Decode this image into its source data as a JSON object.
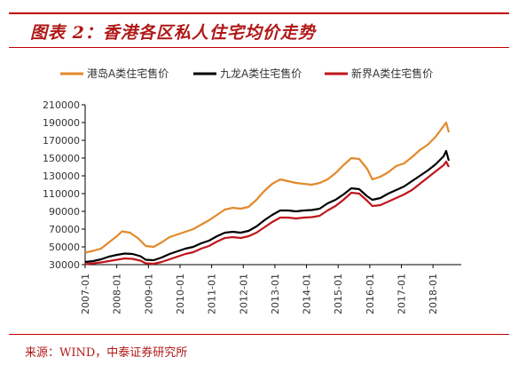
{
  "header": {
    "title": "图表 2：香港各区私人住宅均价走势"
  },
  "footer": {
    "source": "来源：WIND，中泰证券研究所"
  },
  "colors": {
    "accent": "#c00000"
  },
  "chart_data": {
    "type": "line",
    "title": "图表 2：香港各区私人住宅均价走势",
    "xlabel": "",
    "ylabel": "",
    "ylim": [
      30000,
      210000
    ],
    "yticks": [
      30000,
      50000,
      70000,
      90000,
      110000,
      130000,
      150000,
      170000,
      190000,
      210000
    ],
    "x_tick_labels": [
      "2007-01",
      "2008-01",
      "2009-01",
      "2010-01",
      "2011-01",
      "2012-01",
      "2013-01",
      "2014-01",
      "2015-01",
      "2016-01",
      "2017-01",
      "2018-01"
    ],
    "x_start": "2007-01",
    "x_end": "2018-07",
    "grid": false,
    "legend_position": "top",
    "series": [
      {
        "name": "港岛A类住宅售价",
        "color": "#e3892b",
        "points": [
          [
            "2007-01",
            43500
          ],
          [
            "2007-04",
            45500
          ],
          [
            "2007-07",
            48000
          ],
          [
            "2007-10",
            55000
          ],
          [
            "2008-01",
            62000
          ],
          [
            "2008-03",
            67500
          ],
          [
            "2008-06",
            66000
          ],
          [
            "2008-09",
            60000
          ],
          [
            "2008-12",
            51000
          ],
          [
            "2009-03",
            50000
          ],
          [
            "2009-06",
            55000
          ],
          [
            "2009-09",
            61000
          ],
          [
            "2009-12",
            64000
          ],
          [
            "2010-03",
            67000
          ],
          [
            "2010-06",
            70000
          ],
          [
            "2010-09",
            75000
          ],
          [
            "2010-12",
            80000
          ],
          [
            "2011-03",
            86000
          ],
          [
            "2011-06",
            92000
          ],
          [
            "2011-09",
            94000
          ],
          [
            "2011-12",
            93000
          ],
          [
            "2012-03",
            95000
          ],
          [
            "2012-06",
            103000
          ],
          [
            "2012-09",
            113000
          ],
          [
            "2012-12",
            121000
          ],
          [
            "2013-03",
            126000
          ],
          [
            "2013-06",
            124000
          ],
          [
            "2013-09",
            122000
          ],
          [
            "2013-12",
            121000
          ],
          [
            "2014-03",
            120000
          ],
          [
            "2014-06",
            122000
          ],
          [
            "2014-09",
            126000
          ],
          [
            "2014-12",
            133000
          ],
          [
            "2015-03",
            142000
          ],
          [
            "2015-06",
            150000
          ],
          [
            "2015-09",
            149000
          ],
          [
            "2015-12",
            138000
          ],
          [
            "2016-02",
            126000
          ],
          [
            "2016-05",
            129000
          ],
          [
            "2016-08",
            134000
          ],
          [
            "2016-11",
            141000
          ],
          [
            "2017-02",
            144000
          ],
          [
            "2017-05",
            151000
          ],
          [
            "2017-08",
            159000
          ],
          [
            "2017-11",
            165000
          ],
          [
            "2018-02",
            174000
          ],
          [
            "2018-05",
            186000
          ],
          [
            "2018-06",
            190000
          ],
          [
            "2018-07",
            179000
          ]
        ]
      },
      {
        "name": "九龙A类住宅售价",
        "color": "#000000",
        "points": [
          [
            "2007-01",
            33000
          ],
          [
            "2007-04",
            34000
          ],
          [
            "2007-07",
            36000
          ],
          [
            "2007-10",
            39000
          ],
          [
            "2008-01",
            41000
          ],
          [
            "2008-04",
            42500
          ],
          [
            "2008-07",
            42000
          ],
          [
            "2008-10",
            39500
          ],
          [
            "2008-12",
            35500
          ],
          [
            "2009-03",
            35000
          ],
          [
            "2009-06",
            38000
          ],
          [
            "2009-09",
            42000
          ],
          [
            "2009-12",
            45000
          ],
          [
            "2010-03",
            48000
          ],
          [
            "2010-06",
            50000
          ],
          [
            "2010-09",
            54000
          ],
          [
            "2010-12",
            57000
          ],
          [
            "2011-03",
            62000
          ],
          [
            "2011-06",
            66000
          ],
          [
            "2011-09",
            67000
          ],
          [
            "2011-12",
            66000
          ],
          [
            "2012-03",
            68000
          ],
          [
            "2012-06",
            73000
          ],
          [
            "2012-09",
            80000
          ],
          [
            "2012-12",
            86000
          ],
          [
            "2013-03",
            91000
          ],
          [
            "2013-06",
            91000
          ],
          [
            "2013-09",
            90000
          ],
          [
            "2013-12",
            91000
          ],
          [
            "2014-03",
            91500
          ],
          [
            "2014-06",
            93000
          ],
          [
            "2014-09",
            99000
          ],
          [
            "2014-12",
            103000
          ],
          [
            "2015-03",
            109000
          ],
          [
            "2015-06",
            116000
          ],
          [
            "2015-09",
            115000
          ],
          [
            "2015-12",
            107000
          ],
          [
            "2016-02",
            103000
          ],
          [
            "2016-05",
            105000
          ],
          [
            "2016-08",
            110000
          ],
          [
            "2016-11",
            114000
          ],
          [
            "2017-02",
            118000
          ],
          [
            "2017-05",
            124000
          ],
          [
            "2017-08",
            130000
          ],
          [
            "2017-11",
            136000
          ],
          [
            "2018-02",
            143000
          ],
          [
            "2018-05",
            152000
          ],
          [
            "2018-06",
            158000
          ],
          [
            "2018-07",
            147000
          ]
        ]
      },
      {
        "name": "新界A类住宅售价",
        "color": "#c0161d",
        "points": [
          [
            "2007-01",
            30500
          ],
          [
            "2007-04",
            31500
          ],
          [
            "2007-07",
            32500
          ],
          [
            "2007-10",
            34000
          ],
          [
            "2008-01",
            35500
          ],
          [
            "2008-04",
            37000
          ],
          [
            "2008-07",
            36500
          ],
          [
            "2008-10",
            34500
          ],
          [
            "2008-12",
            31500
          ],
          [
            "2009-03",
            31000
          ],
          [
            "2009-06",
            33000
          ],
          [
            "2009-09",
            36000
          ],
          [
            "2009-12",
            39000
          ],
          [
            "2010-03",
            42000
          ],
          [
            "2010-06",
            44000
          ],
          [
            "2010-09",
            48000
          ],
          [
            "2010-12",
            51000
          ],
          [
            "2011-03",
            56000
          ],
          [
            "2011-06",
            60000
          ],
          [
            "2011-09",
            61000
          ],
          [
            "2011-12",
            60000
          ],
          [
            "2012-03",
            62000
          ],
          [
            "2012-06",
            66000
          ],
          [
            "2012-09",
            72000
          ],
          [
            "2012-12",
            78000
          ],
          [
            "2013-03",
            83000
          ],
          [
            "2013-06",
            83000
          ],
          [
            "2013-09",
            82000
          ],
          [
            "2013-12",
            83000
          ],
          [
            "2014-03",
            83500
          ],
          [
            "2014-06",
            85000
          ],
          [
            "2014-09",
            91000
          ],
          [
            "2014-12",
            96000
          ],
          [
            "2015-03",
            103000
          ],
          [
            "2015-06",
            111000
          ],
          [
            "2015-09",
            110000
          ],
          [
            "2015-12",
            102000
          ],
          [
            "2016-02",
            96000
          ],
          [
            "2016-05",
            97000
          ],
          [
            "2016-08",
            101000
          ],
          [
            "2016-11",
            105000
          ],
          [
            "2017-02",
            109000
          ],
          [
            "2017-05",
            114000
          ],
          [
            "2017-08",
            121000
          ],
          [
            "2017-11",
            128000
          ],
          [
            "2018-02",
            135000
          ],
          [
            "2018-05",
            142000
          ],
          [
            "2018-06",
            146000
          ],
          [
            "2018-07",
            140000
          ]
        ]
      }
    ]
  }
}
